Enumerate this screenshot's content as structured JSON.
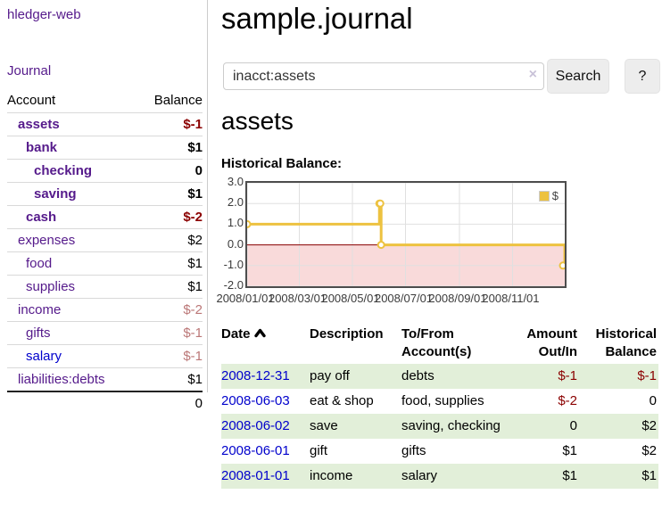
{
  "app": {
    "brand": "hledger-web",
    "nav": {
      "journal": "Journal"
    }
  },
  "sidebar": {
    "columns": {
      "account": "Account",
      "balance": "Balance"
    },
    "accounts": [
      {
        "name": "assets",
        "balance": "$-1"
      },
      {
        "name": "bank",
        "balance": "$1"
      },
      {
        "name": "checking",
        "balance": "0"
      },
      {
        "name": "saving",
        "balance": "$1"
      },
      {
        "name": "cash",
        "balance": "$-2"
      },
      {
        "name": "expenses",
        "balance": "$2"
      },
      {
        "name": "food",
        "balance": "$1"
      },
      {
        "name": "supplies",
        "balance": "$1"
      },
      {
        "name": "income",
        "balance": "$-2"
      },
      {
        "name": "gifts",
        "balance": "$-1"
      },
      {
        "name": "salary",
        "balance": "$-1"
      },
      {
        "name": "liabilities:debts",
        "balance": "$1"
      }
    ],
    "total": "0"
  },
  "main": {
    "file_title": "sample.journal",
    "search": {
      "value": "inacct:assets",
      "clear_icon": "×",
      "search_button": "Search",
      "help_button": "?"
    },
    "account_heading": "assets",
    "section_label": "Historical Balance:"
  },
  "chart_data": {
    "type": "line",
    "title": "Historical Balance:",
    "legend": [
      {
        "label": "$",
        "color": "#edc240"
      }
    ],
    "x_ticks": [
      {
        "label": "2008/01/01",
        "day": 0
      },
      {
        "label": "2008/03/01",
        "day": 60
      },
      {
        "label": "2008/05/01",
        "day": 121
      },
      {
        "label": "2008/07/01",
        "day": 182
      },
      {
        "label": "2008/09/01",
        "day": 244
      },
      {
        "label": "2008/11/01",
        "day": 305
      }
    ],
    "x_range_days": 365,
    "y_ticks": [
      "3.0",
      "2.0",
      "1.0",
      "0.0",
      "-1.0",
      "-2.0"
    ],
    "ylim": [
      -2,
      3
    ],
    "grid": true,
    "legend_position": "top-right",
    "series": [
      {
        "name": "$",
        "color": "#edc240",
        "step": true,
        "points": [
          {
            "date": "2008-01-01",
            "day": 0,
            "value": 1
          },
          {
            "date": "2008-06-01",
            "day": 152,
            "value": 2
          },
          {
            "date": "2008-06-02",
            "day": 153,
            "value": 2
          },
          {
            "date": "2008-06-03",
            "day": 154,
            "value": 0
          },
          {
            "date": "2008-12-31",
            "day": 365,
            "value": -1
          }
        ]
      }
    ],
    "negative_region_color": "#f9dada",
    "zero_line_color": "#8b0000",
    "grid_color": "#e0e0e0",
    "border_color": "#4d4d4d"
  },
  "register": {
    "headers": {
      "date": "Date",
      "description": "Description",
      "tofrom": "To/From Account(s)",
      "amount": "Amount Out/In",
      "balance": "Historical Balance"
    },
    "rows": [
      {
        "date": "2008-12-31",
        "description": "pay off",
        "accounts": "debts",
        "amount": "$-1",
        "balance": "$-1"
      },
      {
        "date": "2008-06-03",
        "description": "eat & shop",
        "accounts": "food, supplies",
        "amount": "$-2",
        "balance": "0"
      },
      {
        "date": "2008-06-02",
        "description": "save",
        "accounts": "saving, checking",
        "amount": "0",
        "balance": "$2"
      },
      {
        "date": "2008-06-01",
        "description": "gift",
        "accounts": "gifts",
        "amount": "$1",
        "balance": "$2"
      },
      {
        "date": "2008-01-01",
        "description": "income",
        "accounts": "salary",
        "amount": "$1",
        "balance": "$1"
      }
    ]
  }
}
